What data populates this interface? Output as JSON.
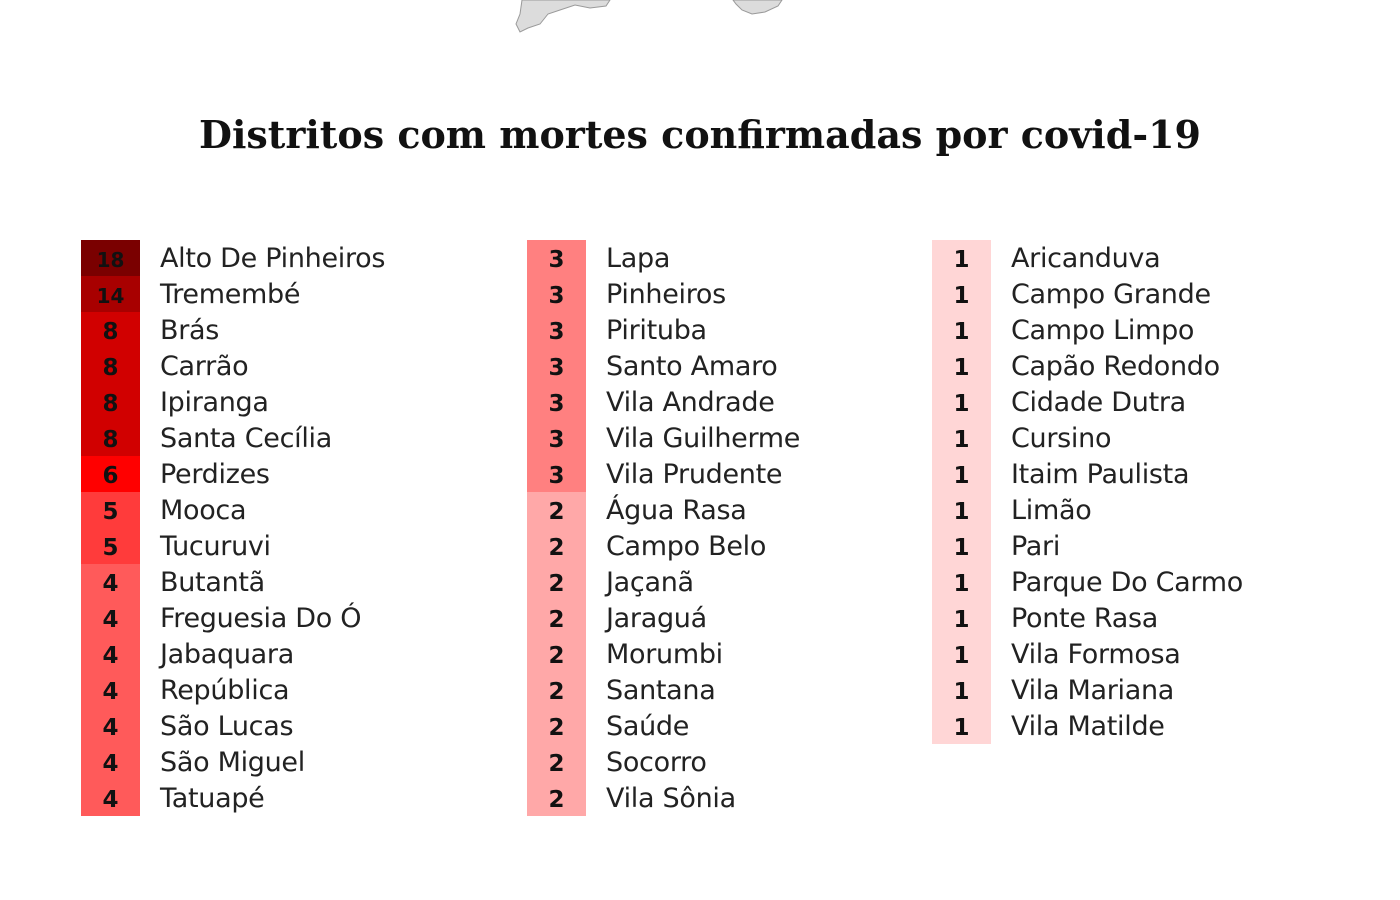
{
  "title": "Distritos com mortes confirmadas por covid-19",
  "colors": {
    "18": "#7a0000",
    "14": "#a80000",
    "8": "#d10000",
    "6": "#ff0000",
    "5": "#ff3b3b",
    "4": "#ff5a5a",
    "3": "#ff8080",
    "2": "#ffa8a8",
    "1": "#ffd6d6"
  },
  "chart_data": {
    "type": "table",
    "title": "Distritos com mortes confirmadas por covid-19",
    "columns": [
      [
        {
          "district": "Alto De Pinheiros",
          "deaths": 18
        },
        {
          "district": "Tremembé",
          "deaths": 14
        },
        {
          "district": "Brás",
          "deaths": 8
        },
        {
          "district": "Carrão",
          "deaths": 8
        },
        {
          "district": "Ipiranga",
          "deaths": 8
        },
        {
          "district": "Santa Cecília",
          "deaths": 8
        },
        {
          "district": "Perdizes",
          "deaths": 6
        },
        {
          "district": "Mooca",
          "deaths": 5
        },
        {
          "district": "Tucuruvi",
          "deaths": 5
        },
        {
          "district": "Butantã",
          "deaths": 4
        },
        {
          "district": "Freguesia Do Ó",
          "deaths": 4
        },
        {
          "district": "Jabaquara",
          "deaths": 4
        },
        {
          "district": "República",
          "deaths": 4
        },
        {
          "district": "São Lucas",
          "deaths": 4
        },
        {
          "district": "São Miguel",
          "deaths": 4
        },
        {
          "district": "Tatuapé",
          "deaths": 4
        }
      ],
      [
        {
          "district": "Lapa",
          "deaths": 3
        },
        {
          "district": "Pinheiros",
          "deaths": 3
        },
        {
          "district": "Pirituba",
          "deaths": 3
        },
        {
          "district": "Santo Amaro",
          "deaths": 3
        },
        {
          "district": "Vila Andrade",
          "deaths": 3
        },
        {
          "district": "Vila Guilherme",
          "deaths": 3
        },
        {
          "district": "Vila Prudente",
          "deaths": 3
        },
        {
          "district": "Água Rasa",
          "deaths": 2
        },
        {
          "district": "Campo Belo",
          "deaths": 2
        },
        {
          "district": "Jaçanã",
          "deaths": 2
        },
        {
          "district": "Jaraguá",
          "deaths": 2
        },
        {
          "district": "Morumbi",
          "deaths": 2
        },
        {
          "district": "Santana",
          "deaths": 2
        },
        {
          "district": "Saúde",
          "deaths": 2
        },
        {
          "district": "Socorro",
          "deaths": 2
        },
        {
          "district": "Vila Sônia",
          "deaths": 2
        }
      ],
      [
        {
          "district": "Aricanduva",
          "deaths": 1
        },
        {
          "district": "Campo Grande",
          "deaths": 1
        },
        {
          "district": "Campo Limpo",
          "deaths": 1
        },
        {
          "district": "Capão Redondo",
          "deaths": 1
        },
        {
          "district": "Cidade Dutra",
          "deaths": 1
        },
        {
          "district": "Cursino",
          "deaths": 1
        },
        {
          "district": "Itaim Paulista",
          "deaths": 1
        },
        {
          "district": "Limão",
          "deaths": 1
        },
        {
          "district": "Pari",
          "deaths": 1
        },
        {
          "district": "Parque Do Carmo",
          "deaths": 1
        },
        {
          "district": "Ponte Rasa",
          "deaths": 1
        },
        {
          "district": "Vila Formosa",
          "deaths": 1
        },
        {
          "district": "Vila Mariana",
          "deaths": 1
        },
        {
          "district": "Vila Matilde",
          "deaths": 1
        }
      ]
    ]
  }
}
